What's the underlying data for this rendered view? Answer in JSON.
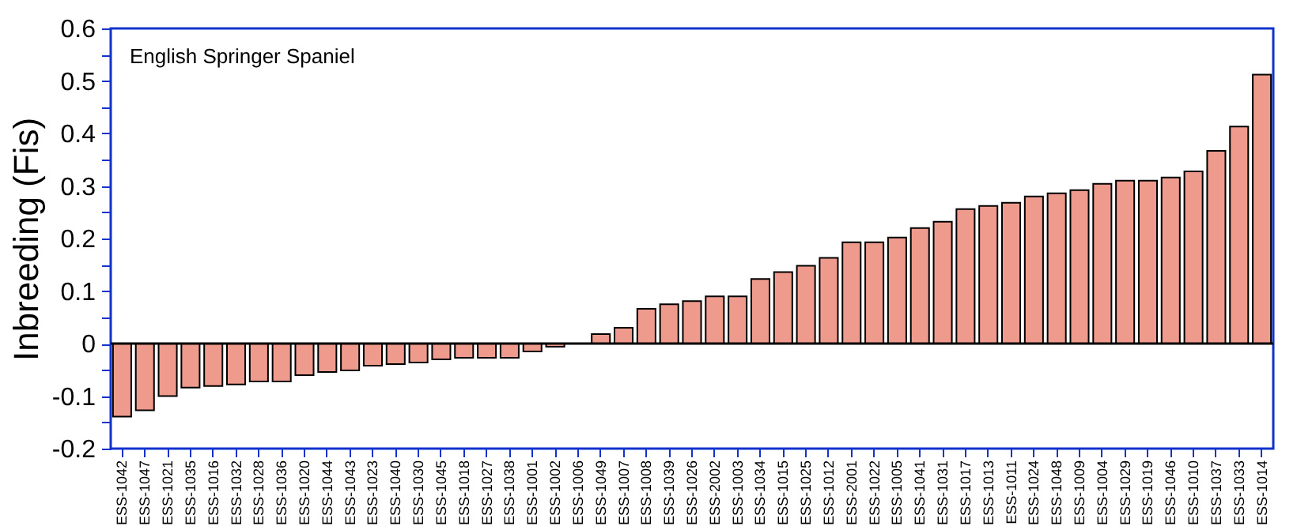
{
  "chart_data": {
    "type": "bar",
    "ylabel": "Inbreeding (Fis)",
    "annotations": [
      "English Springer Spaniel"
    ],
    "categories": [
      "ESS-1042",
      "ESS-1047",
      "ESS-1021",
      "ESS-1035",
      "ESS-1016",
      "ESS-1032",
      "ESS-1028",
      "ESS-1036",
      "ESS-1020",
      "ESS-1044",
      "ESS-1043",
      "ESS-1023",
      "ESS-1040",
      "ESS-1030",
      "ESS-1045",
      "ESS-1018",
      "ESS-1027",
      "ESS-1038",
      "ESS-1001",
      "ESS-1002",
      "ESS-1006",
      "ESS-1049",
      "ESS-1007",
      "ESS-1008",
      "ESS-1039",
      "ESS-1026",
      "ESS-2002",
      "ESS-1003",
      "ESS-1034",
      "ESS-1015",
      "ESS-1025",
      "ESS-1012",
      "ESS-2001",
      "ESS-1022",
      "ESS-1005",
      "ESS-1041",
      "ESS-1031",
      "ESS-1017",
      "ESS-1013",
      "ESS-1011",
      "ESS-1024",
      "ESS-1048",
      "ESS-1009",
      "ESS-1004",
      "ESS-1029",
      "ESS-1019",
      "ESS-1046",
      "ESS-1010",
      "ESS-1037",
      "ESS-1033",
      "ESS-1014"
    ],
    "values": [
      -0.139,
      -0.127,
      -0.1,
      -0.084,
      -0.081,
      -0.078,
      -0.072,
      -0.072,
      -0.06,
      -0.054,
      -0.051,
      -0.042,
      -0.039,
      -0.036,
      -0.03,
      -0.027,
      -0.027,
      -0.027,
      -0.015,
      -0.006,
      0,
      0.018,
      0.03,
      0.066,
      0.075,
      0.081,
      0.09,
      0.09,
      0.123,
      0.136,
      0.148,
      0.163,
      0.193,
      0.193,
      0.202,
      0.22,
      0.232,
      0.256,
      0.262,
      0.268,
      0.28,
      0.286,
      0.292,
      0.304,
      0.31,
      0.31,
      0.316,
      0.328,
      0.367,
      0.413,
      0.512
    ],
    "color": "#ee9a8c",
    "ylim": [
      -0.2,
      0.6
    ],
    "yticks": [
      -0.2,
      {
        "value": -0.15,
        "label": null
      },
      -0.1,
      {
        "value": -0.05,
        "label": null
      },
      0,
      {
        "value": 0.05,
        "label": null
      },
      0.1,
      {
        "value": 0.15,
        "label": null
      },
      0.2,
      {
        "value": 0.25,
        "label": null
      },
      0.3,
      {
        "value": 0.35,
        "label": null
      },
      0.4,
      {
        "value": 0.45,
        "label": null
      },
      0.5,
      {
        "value": 0.55,
        "label": null
      },
      0.6
    ]
  }
}
